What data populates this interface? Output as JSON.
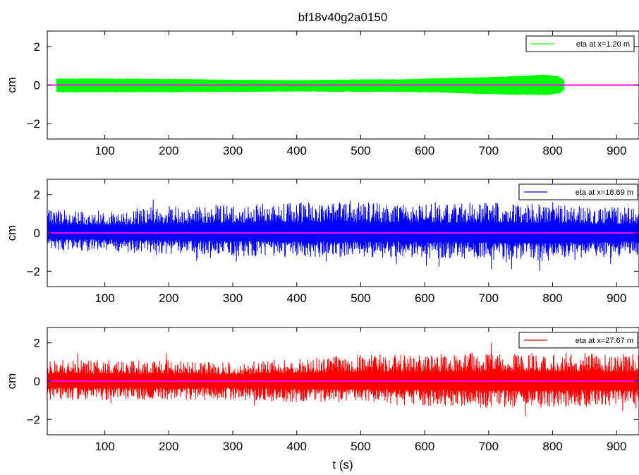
{
  "figure": {
    "title": "bf18v40g2a0150",
    "xlabel": "t (s)"
  },
  "chart_data": [
    {
      "type": "line",
      "title": "bf18v40g2a0150",
      "xlabel": "",
      "ylabel": "cm",
      "xlim": [
        10,
        935
      ],
      "ylim": [
        -2.8,
        2.8
      ],
      "xticks": [
        100,
        200,
        300,
        400,
        500,
        600,
        700,
        800,
        900
      ],
      "yticks": [
        -2,
        0,
        2
      ],
      "ytick_labels": [
        "−2",
        "0",
        "2"
      ],
      "grid": false,
      "legend_position": "top-right",
      "series": [
        {
          "name": "eta at x=1.20 m",
          "color": "#00ff00",
          "envelope": {
            "x": [
              25,
              100,
              200,
              300,
              400,
              500,
              560,
              620,
              680,
              720,
              760,
              790,
              810,
              818
            ],
            "upper": [
              0.34,
              0.34,
              0.32,
              0.28,
              0.26,
              0.3,
              0.3,
              0.36,
              0.4,
              0.44,
              0.5,
              0.56,
              0.45,
              0.25
            ],
            "lower": [
              -0.38,
              -0.38,
              -0.38,
              -0.36,
              -0.34,
              -0.36,
              -0.36,
              -0.4,
              -0.46,
              -0.5,
              -0.52,
              -0.52,
              -0.45,
              -0.25
            ]
          }
        },
        {
          "name": "mean",
          "color": "#ff00ff",
          "x": [
            10,
            935
          ],
          "y": [
            0,
            0
          ]
        }
      ]
    },
    {
      "type": "line",
      "xlabel": "",
      "ylabel": "cm",
      "xlim": [
        10,
        935
      ],
      "ylim": [
        -2.8,
        2.8
      ],
      "xticks": [
        100,
        200,
        300,
        400,
        500,
        600,
        700,
        800,
        900
      ],
      "yticks": [
        -2,
        0,
        2
      ],
      "ytick_labels": [
        "−2",
        "0",
        "2"
      ],
      "grid": false,
      "legend_position": "top-right",
      "series": [
        {
          "name": "eta at x=18.69 m",
          "color": "#0000ff",
          "envelope": {
            "x": [
              10,
              100,
              200,
              300,
              400,
              500,
              600,
              700,
              800,
              935
            ],
            "upper": [
              1.2,
              1.2,
              1.4,
              1.5,
              1.6,
              1.6,
              1.5,
              1.6,
              1.5,
              1.3
            ],
            "lower": [
              -0.9,
              -1.0,
              -1.1,
              -1.2,
              -1.3,
              -1.3,
              -1.3,
              -1.4,
              -1.5,
              -1.2
            ]
          }
        },
        {
          "name": "mean",
          "color": "#ff00ff",
          "x": [
            10,
            935
          ],
          "y": [
            0,
            0
          ]
        }
      ]
    },
    {
      "type": "line",
      "xlabel": "t (s)",
      "ylabel": "cm",
      "xlim": [
        10,
        935
      ],
      "ylim": [
        -2.8,
        2.8
      ],
      "xticks": [
        100,
        200,
        300,
        400,
        500,
        600,
        700,
        800,
        900
      ],
      "yticks": [
        -2,
        0,
        2
      ],
      "ytick_labels": [
        "−2",
        "0",
        "2"
      ],
      "grid": false,
      "legend_position": "top-right",
      "series": [
        {
          "name": "eta at x=27.67 m",
          "color": "#ff0000",
          "envelope": {
            "x": [
              10,
              100,
              200,
              300,
              400,
              500,
              600,
              700,
              800,
              935
            ],
            "upper": [
              1.1,
              1.1,
              1.1,
              1.0,
              1.2,
              1.4,
              1.4,
              1.5,
              1.5,
              1.4
            ],
            "lower": [
              -1.0,
              -1.0,
              -1.0,
              -1.0,
              -1.1,
              -1.2,
              -1.3,
              -1.4,
              -1.4,
              -1.3
            ]
          }
        },
        {
          "name": "mean",
          "color": "#ff00ff",
          "x": [
            10,
            935
          ],
          "y": [
            0,
            0
          ]
        }
      ]
    }
  ]
}
